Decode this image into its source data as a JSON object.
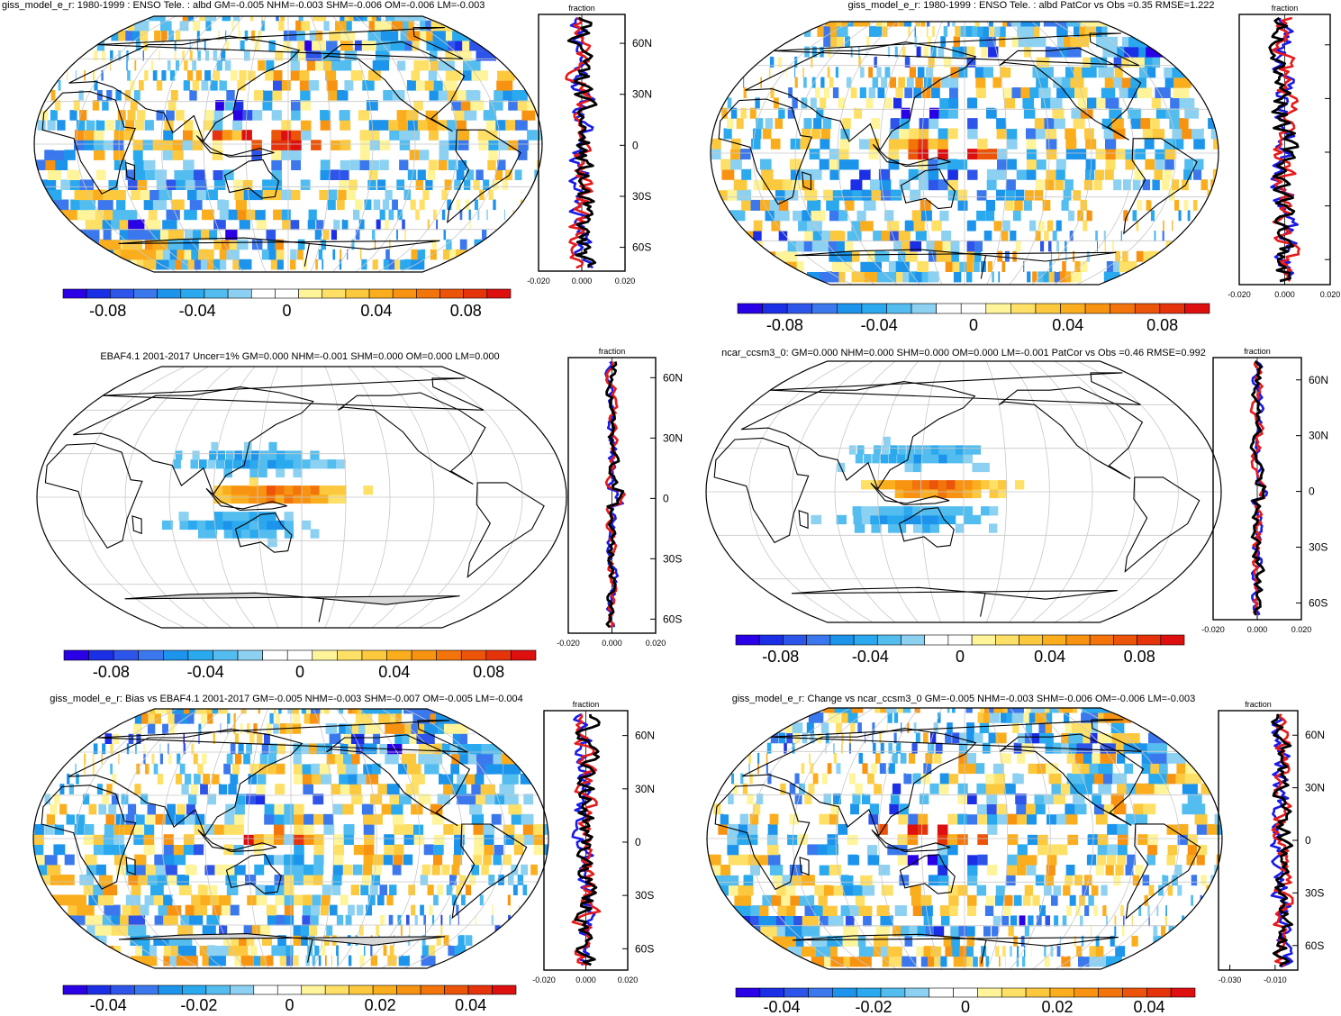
{
  "palette": [
    "#2a00e6",
    "#1b2fe6",
    "#2e55ea",
    "#3b78ee",
    "#1c94ec",
    "#2aa9ee",
    "#53bdf0",
    "#8cd1f2",
    "#ffffff",
    "#ffffff",
    "#fff49a",
    "#ffe067",
    "#fcc83e",
    "#fbae1d",
    "#f89312",
    "#f2740b",
    "#ec5409",
    "#e5330b",
    "#de0f0f"
  ],
  "landColor": "#d7d7d7",
  "series_colors": {
    "model": "#000000",
    "obs": "#e61a1a",
    "other": "#1a1ae6"
  },
  "chart_data": [
    {
      "type": "heatmap",
      "id": "p1",
      "fill": "dense",
      "title": "giss_model_e_r: 1980-1999 : ENSO Tele. : albd GM=-0.005 NHM=-0.003 SHM=-0.006 OM=-0.006 LM=-0.003",
      "colorbar": {
        "range": [
          -0.1,
          0.1
        ],
        "tick_labels": [
          "-0.08",
          "-0.04",
          "0",
          "0.04",
          "0.08"
        ],
        "tick_values": [
          -0.08,
          -0.04,
          0,
          0.04,
          0.08
        ]
      },
      "zonal": {
        "header": "fraction",
        "xlim": [
          -0.02,
          0.02
        ],
        "xtick_labels": [
          "-0.020",
          "0.000",
          "0.020"
        ],
        "xtick_values": [
          -0.02,
          0,
          0.02
        ],
        "lat_labels": [
          "60N",
          "30N",
          "0",
          "30S",
          "60S"
        ],
        "lat_values": [
          60,
          30,
          0,
          -30,
          -60
        ],
        "amp": 0.009,
        "seed": 11
      }
    },
    {
      "type": "heatmap",
      "id": "p2",
      "fill": "dense",
      "title": "giss_model_e_r: 1980-1999 : ENSO Tele. : albd PatCor vs Obs =0.35 RMSE=1.222",
      "colorbar": {
        "range": [
          -0.1,
          0.1
        ],
        "tick_labels": [
          "-0.08",
          "-0.04",
          "0",
          "0.04",
          "0.08"
        ],
        "tick_values": [
          -0.08,
          -0.04,
          0,
          0.04,
          0.08
        ]
      },
      "zonal": {
        "header": "fraction",
        "xlim": [
          -0.02,
          0.02
        ],
        "xtick_labels": [
          "-0.020",
          "0.000",
          "0.020"
        ],
        "xtick_values": [
          -0.02,
          0,
          0.02
        ],
        "lat_labels": [],
        "lat_values": [],
        "amp": 0.009,
        "seed": 23
      }
    },
    {
      "type": "heatmap",
      "id": "p3",
      "fill": "sparse",
      "title": "EBAF4.1 2001-2017 Uncer=1% GM=0.000 NHM=-0.001 SHM=0.000 OM=0.000 LM=0.000",
      "colorbar": {
        "range": [
          -0.1,
          0.1
        ],
        "tick_labels": [
          "-0.08",
          "-0.04",
          "0",
          "0.04",
          "0.08"
        ],
        "tick_values": [
          -0.08,
          -0.04,
          0,
          0.04,
          0.08
        ]
      },
      "zonal": {
        "header": "fraction",
        "xlim": [
          -0.02,
          0.02
        ],
        "xtick_labels": [
          "-0.020",
          "0.000",
          "0.020"
        ],
        "xtick_values": [
          -0.02,
          0,
          0.02
        ],
        "lat_labels": [
          "60N",
          "30N",
          "0",
          "30S",
          "60S"
        ],
        "lat_values": [
          60,
          30,
          0,
          -30,
          -60
        ],
        "amp": 0.004,
        "seed": 37
      }
    },
    {
      "type": "heatmap",
      "id": "p4",
      "fill": "sparse",
      "title": "ncar_ccsm3_0: GM=0.000 NHM=0.000 SHM=0.000 OM=0.000 LM=-0.001 PatCor vs Obs =0.46 RMSE=0.992",
      "colorbar": {
        "range": [
          -0.1,
          0.1
        ],
        "tick_labels": [
          "-0.08",
          "-0.04",
          "0",
          "0.04",
          "0.08"
        ],
        "tick_values": [
          -0.08,
          -0.04,
          0,
          0.04,
          0.08
        ]
      },
      "zonal": {
        "header": "fraction",
        "xlim": [
          -0.02,
          0.02
        ],
        "xtick_labels": [
          "-0.020",
          "0.000",
          "0.020"
        ],
        "xtick_values": [
          -0.02,
          0,
          0.02
        ],
        "lat_labels": [
          "60N",
          "30N",
          "0",
          "30S",
          "60S"
        ],
        "lat_values": [
          60,
          30,
          0,
          -30,
          -60
        ],
        "amp": 0.004,
        "seed": 41
      }
    },
    {
      "type": "heatmap",
      "id": "p5",
      "fill": "dense",
      "title": "giss_model_e_r: Bias vs EBAF4.1 2001-2017 GM=-0.005 NHM=-0.003 SHM=-0.007 OM=-0.005 LM=-0.004",
      "colorbar": {
        "range": [
          -0.05,
          0.05
        ],
        "tick_labels": [
          "-0.04",
          "-0.02",
          "0",
          "0.02",
          "0.04"
        ],
        "tick_values": [
          -0.04,
          -0.02,
          0,
          0.02,
          0.04
        ]
      },
      "zonal": {
        "header": "fraction",
        "xlim": [
          -0.02,
          0.02
        ],
        "xtick_labels": [
          "-0.020",
          "0.000",
          "0.020"
        ],
        "xtick_values": [
          -0.02,
          0,
          0.02
        ],
        "lat_labels": [
          "60N",
          "30N",
          "0",
          "30S",
          "60S"
        ],
        "lat_values": [
          60,
          30,
          0,
          -30,
          -60
        ],
        "amp": 0.009,
        "seed": 53
      }
    },
    {
      "type": "heatmap",
      "id": "p6",
      "fill": "dense",
      "title": "giss_model_e_r: Change vs ncar_ccsm3_0 GM=-0.005 NHM=-0.003 SHM=-0.006 OM=-0.006 LM=-0.003",
      "colorbar": {
        "range": [
          -0.05,
          0.05
        ],
        "tick_labels": [
          "-0.04",
          "-0.02",
          "0",
          "0.02",
          "0.04"
        ],
        "tick_values": [
          -0.04,
          -0.02,
          0,
          0.02,
          0.04
        ]
      },
      "zonal": {
        "header": "fraction",
        "xlim": [
          -0.035,
          0.0
        ],
        "xtick_labels": [
          "-0.030",
          "-0.010"
        ],
        "xtick_values": [
          -0.03,
          -0.01
        ],
        "lat_labels": [
          "60N",
          "30N",
          "0",
          "30S",
          "60S"
        ],
        "lat_values": [
          60,
          30,
          0,
          -30,
          -60
        ],
        "amp": 0.007,
        "seed": 67
      }
    }
  ]
}
